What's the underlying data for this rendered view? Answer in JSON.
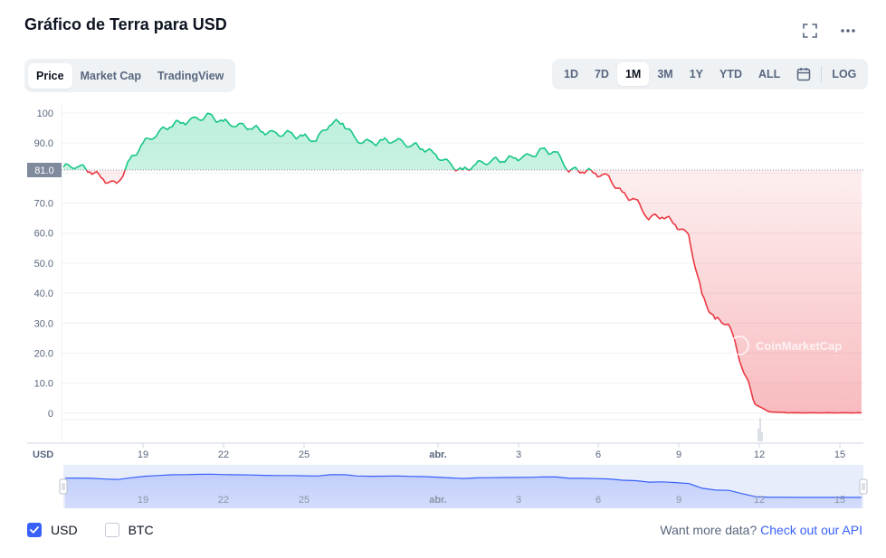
{
  "header": {
    "title": "Gráfico de Terra para USD"
  },
  "tabs_left": [
    "Price",
    "Market Cap",
    "TradingView"
  ],
  "tabs_left_active": 0,
  "tabs_right": [
    "1D",
    "7D",
    "1M",
    "3M",
    "1Y",
    "YTD",
    "ALL"
  ],
  "tabs_right_active": 2,
  "log_label": "LOG",
  "icons": {
    "fullscreen": "fullscreen-icon",
    "more": "more-horizontal-icon",
    "calendar": "calendar-icon"
  },
  "colors": {
    "up": "#16c784",
    "down": "#ea3943",
    "navigator": "#3861fb",
    "accent": "#3861fb"
  },
  "chart_data": {
    "type": "line",
    "y_unit_label": "USD",
    "y_ticks": [
      "100",
      "90.0",
      "80.0",
      "70.0",
      "60.0",
      "50.0",
      "40.0",
      "30.0",
      "20.0",
      "10.0",
      "0"
    ],
    "ylim": [
      -10,
      103
    ],
    "x_ticks": [
      "19",
      "22",
      "25",
      "abr.",
      "3",
      "6",
      "9",
      "12",
      "15"
    ],
    "reference_value": 81.0,
    "reference_label": "81.0",
    "grid": true,
    "watermark": "CoinMarketCap",
    "series": [
      {
        "x": [
          0,
          0.5,
          1,
          1.5,
          2,
          2.5,
          3,
          3.5,
          4,
          4.5,
          5,
          5.5,
          6,
          6.5,
          7,
          7.5,
          8,
          8.5,
          9,
          9.5,
          10,
          10.5,
          11,
          11.5,
          12,
          12.5,
          13,
          13.5,
          14,
          14.5,
          15,
          15.5,
          16,
          16.5,
          17,
          17.5,
          18,
          18.5,
          19,
          19.5,
          20,
          20.5,
          21,
          21.5,
          22,
          22.5,
          23,
          23.5,
          24,
          24.5,
          25,
          25.5,
          26,
          26.5,
          27,
          27.5,
          28,
          28.5,
          29,
          29.5,
          30
        ],
        "values": [
          82,
          82.5,
          81,
          78,
          76,
          84,
          90,
          93,
          96,
          97,
          98,
          99,
          97,
          96,
          95.5,
          94,
          93,
          93,
          92,
          91,
          96.5,
          97,
          91,
          90,
          90.5,
          91,
          89.5,
          88.5,
          86,
          83,
          80.5,
          83,
          84,
          84.5,
          85,
          85.5,
          87.5,
          87,
          81,
          81,
          80,
          78.5,
          73,
          71,
          65,
          66,
          63,
          59,
          39,
          31,
          30,
          16,
          3,
          0.5,
          0.2,
          0.1,
          0.1,
          0.1,
          0.1,
          0.1,
          0.1
        ]
      }
    ],
    "navigator_x_ticks": [
      "19",
      "22",
      "25",
      "abr.",
      "3",
      "6",
      "9",
      "12",
      "15"
    ]
  },
  "legend": {
    "usd_label": "USD",
    "btc_label": "BTC",
    "usd_checked": true,
    "btc_checked": false
  },
  "api_prompt": "Want more data?",
  "api_link": "Check out our API"
}
